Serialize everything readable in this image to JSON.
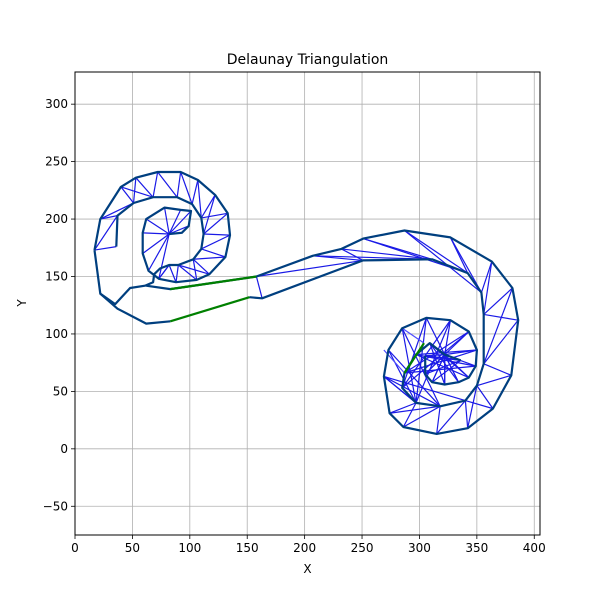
{
  "chart_data": {
    "type": "line",
    "title": "Delaunay Triangulation",
    "xlabel": "X",
    "ylabel": "Y",
    "xlim": [
      0,
      405
    ],
    "ylim": [
      -75,
      328
    ],
    "xticks": [
      0,
      50,
      100,
      150,
      200,
      250,
      300,
      350,
      400
    ],
    "yticks": [
      -50,
      0,
      50,
      100,
      150,
      200,
      250,
      300
    ],
    "grid": true,
    "colors": {
      "boundary": "#003f7f",
      "internal_edge": "#1a1ae6",
      "secondary_edge": "#4d4dff",
      "bridge": "#008000",
      "grid": "#b0b0b0"
    },
    "series": [
      {
        "role": "left-spiral-outer",
        "points": [
          [
            17,
            173
          ],
          [
            22,
            200
          ],
          [
            40,
            228
          ],
          [
            53,
            236
          ],
          [
            72,
            241
          ],
          [
            92,
            241
          ],
          [
            107,
            234
          ],
          [
            122,
            221
          ],
          [
            133,
            205
          ],
          [
            135,
            186
          ],
          [
            131,
            167
          ],
          [
            117,
            152
          ],
          [
            106,
            147
          ],
          [
            88,
            145
          ],
          [
            73,
            148
          ],
          [
            64,
            155
          ],
          [
            59,
            170
          ],
          [
            59,
            188
          ],
          [
            62,
            200
          ],
          [
            78,
            210
          ],
          [
            92,
            208
          ],
          [
            101,
            207
          ],
          [
            99,
            194
          ],
          [
            93,
            188
          ],
          [
            82,
            187
          ]
        ]
      },
      {
        "role": "left-spiral-inner",
        "points": [
          [
            36,
            176
          ],
          [
            37,
            203
          ],
          [
            51,
            214
          ],
          [
            68,
            219
          ],
          [
            89,
            219
          ],
          [
            102,
            213
          ],
          [
            110,
            201
          ],
          [
            112,
            187
          ],
          [
            110,
            174
          ],
          [
            103,
            165
          ],
          [
            90,
            160
          ],
          [
            82,
            160
          ],
          [
            74,
            157
          ],
          [
            69,
            152
          ],
          [
            68,
            145
          ],
          [
            61,
            142
          ],
          [
            48,
            140
          ],
          [
            35,
            126
          ],
          [
            22,
            135
          ],
          [
            17,
            173
          ]
        ]
      },
      {
        "role": "left-spiral-tail",
        "points": [
          [
            22,
            135
          ],
          [
            37,
            122
          ],
          [
            62,
            109
          ],
          [
            83,
            111
          ]
        ]
      },
      {
        "role": "upper-tail",
        "points": [
          [
            62,
            142
          ],
          [
            83,
            139
          ],
          [
            158,
            150
          ],
          [
            207,
            168
          ],
          [
            232,
            174
          ],
          [
            251,
            183
          ],
          [
            287,
            190
          ],
          [
            327,
            184
          ],
          [
            363,
            163
          ],
          [
            381,
            140
          ],
          [
            386,
            112
          ],
          [
            380,
            64
          ],
          [
            364,
            35
          ],
          [
            342,
            18
          ],
          [
            315,
            13
          ],
          [
            286,
            19
          ],
          [
            274,
            31
          ],
          [
            269,
            63
          ],
          [
            273,
            86
          ],
          [
            285,
            105
          ],
          [
            306,
            114
          ],
          [
            327,
            112
          ],
          [
            343,
            102
          ],
          [
            350,
            86
          ],
          [
            349,
            72
          ],
          [
            343,
            62
          ],
          [
            334,
            58
          ],
          [
            322,
            56
          ],
          [
            311,
            58
          ],
          [
            305,
            65
          ],
          [
            305,
            81
          ]
        ]
      },
      {
        "role": "lower-tail",
        "points": [
          [
            152,
            132
          ],
          [
            163,
            131
          ],
          [
            251,
            164
          ],
          [
            311,
            165
          ],
          [
            342,
            153
          ],
          [
            354,
            136
          ],
          [
            356,
            117
          ],
          [
            356,
            74
          ],
          [
            350,
            55
          ],
          [
            340,
            42
          ],
          [
            318,
            37
          ],
          [
            297,
            40
          ],
          [
            285,
            53
          ],
          [
            287,
            66
          ],
          [
            297,
            82
          ],
          [
            309,
            92
          ],
          [
            322,
            82
          ],
          [
            336,
            77
          ]
        ]
      },
      {
        "role": "bridge",
        "points": [
          [
            83,
            111
          ],
          [
            152,
            132
          ]
        ]
      },
      {
        "role": "bridge",
        "points": [
          [
            83,
            139
          ],
          [
            158,
            150
          ]
        ]
      },
      {
        "role": "bridge",
        "points": [
          [
            287,
            66
          ],
          [
            304,
            92
          ]
        ]
      }
    ]
  }
}
